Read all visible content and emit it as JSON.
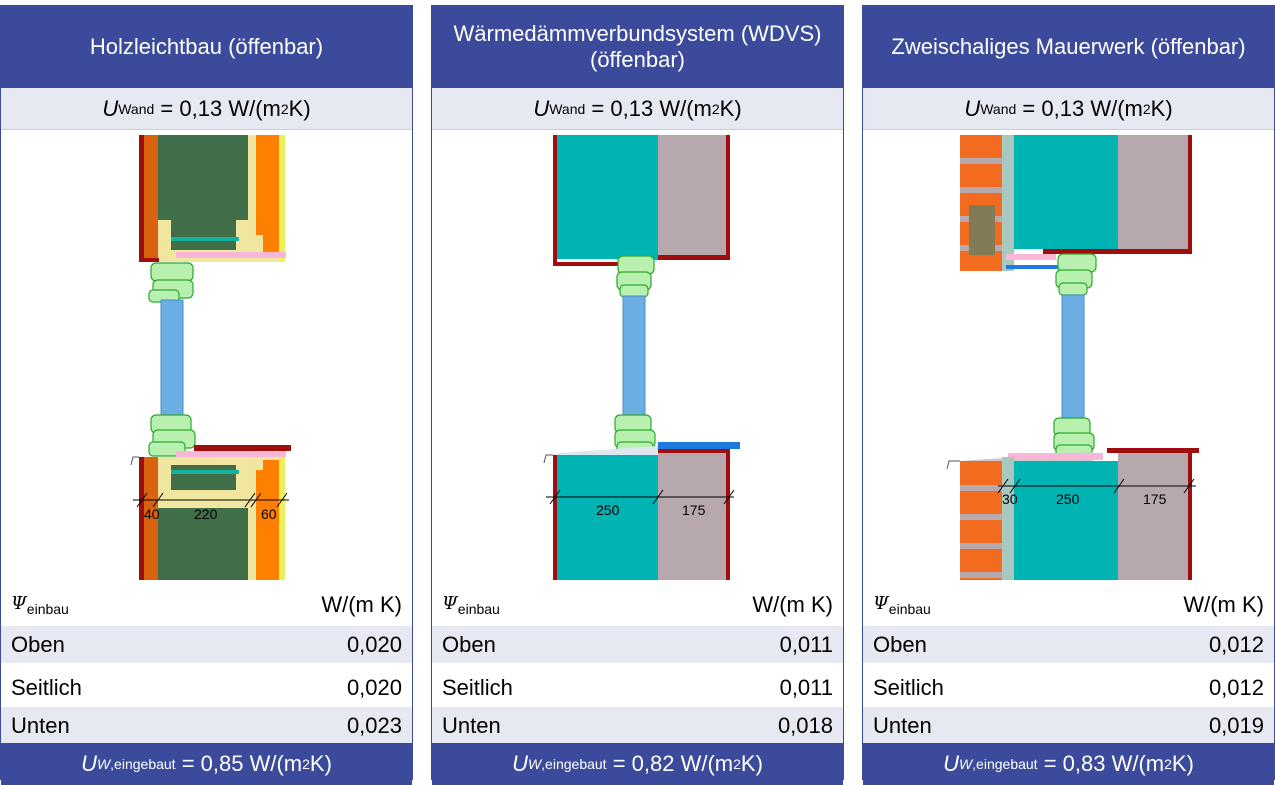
{
  "panels": [
    {
      "title": "Holzleichtbau (öffenbar)",
      "u_wand": {
        "symbol": "U",
        "sub": "Wand",
        "value": "= 0,13 W/(m",
        "exp": "2",
        "unit_end": " K)"
      },
      "dims": [
        "40",
        "220",
        "60"
      ],
      "psi_header": {
        "symbol": "Ψ",
        "sub": "einbau",
        "unit": "W/(m K)"
      },
      "rows": [
        {
          "label": "Oben",
          "value": "0,020"
        },
        {
          "label": "Seitlich",
          "value": "0,020"
        },
        {
          "label": "Unten",
          "value": "0,023"
        }
      ],
      "u_w": {
        "symbol": "U",
        "sub_w": "W",
        "sub": ",eingebaut",
        "value": "= 0,85 W/(m",
        "exp": "2",
        "unit_end": " K)"
      }
    },
    {
      "title": "Wärmedämmverbundsystem (WDVS) (öffenbar)",
      "u_wand": {
        "symbol": "U",
        "sub": "Wand",
        "value": "= 0,13 W/(m",
        "exp": "2",
        "unit_end": " K)"
      },
      "dims": [
        "250",
        "175"
      ],
      "psi_header": {
        "symbol": "Ψ",
        "sub": "einbau",
        "unit": "W/(m K)"
      },
      "rows": [
        {
          "label": "Oben",
          "value": "0,011"
        },
        {
          "label": "Seitlich",
          "value": "0,011"
        },
        {
          "label": "Unten",
          "value": "0,018"
        }
      ],
      "u_w": {
        "symbol": "U",
        "sub_w": "W",
        "sub": ",eingebaut",
        "value": "= 0,82 W/(m",
        "exp": "2",
        "unit_end": " K)"
      }
    },
    {
      "title": "Zweischaliges Mauerwerk (öffenbar)",
      "u_wand": {
        "symbol": "U",
        "sub": "Wand",
        "value": "= 0,13 W/(m",
        "exp": "2",
        "unit_end": " K)"
      },
      "dims": [
        "30",
        "250",
        "175"
      ],
      "psi_header": {
        "symbol": "Ψ",
        "sub": "einbau",
        "unit": "W/(m K)"
      },
      "rows": [
        {
          "label": "Oben",
          "value": "0,012"
        },
        {
          "label": "Seitlich",
          "value": "0,012"
        },
        {
          "label": "Unten",
          "value": "0,019"
        }
      ],
      "u_w": {
        "symbol": "U",
        "sub_w": "W",
        "sub": ",eingebaut",
        "value": "= 0,83 W/(m",
        "exp": "2",
        "unit_end": " K)"
      }
    }
  ],
  "colors": {
    "header_bg": "#3b4a9a",
    "row_alt": "#e6e9f1",
    "glass": "#6aaee4",
    "frame": "#8fe08f",
    "insulation_cyan": "#00b4b4",
    "masonry": "#b6a8ad",
    "brick": "#f26b1f",
    "wood_green": "#3f6e48",
    "seal_pink": "#f8b6d8",
    "finish_red": "#a00d0d"
  }
}
